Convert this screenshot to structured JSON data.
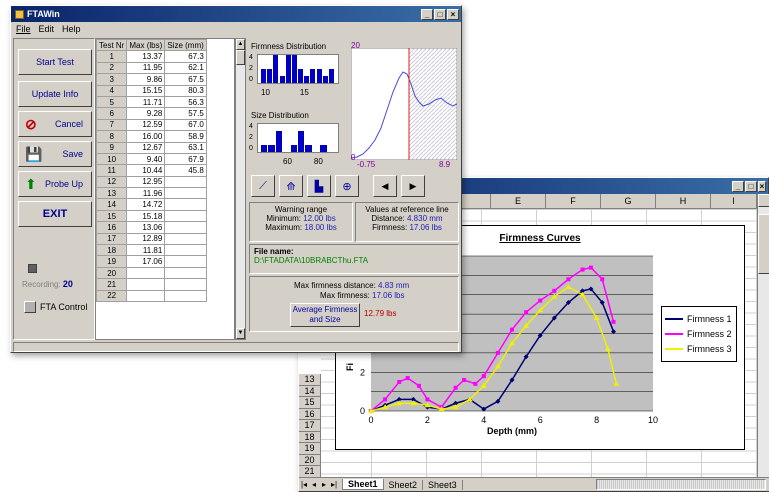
{
  "ftawin": {
    "title": "FTAWin",
    "menu": [
      "File",
      "Edit",
      "Help"
    ],
    "buttons": {
      "start_test": "Start Test",
      "update_info": "Update Info",
      "cancel": "Cancel",
      "save": "Save",
      "probe_up": "Probe Up",
      "exit": "EXIT"
    },
    "recording_label": "Recording:",
    "recording_value": "20",
    "fta_control": "FTA Control",
    "table_headers": [
      "Test Nr",
      "Max (lbs)",
      "Size (mm)"
    ],
    "rows": [
      [
        "1",
        "13.37",
        "67.3"
      ],
      [
        "2",
        "11.95",
        "62.1"
      ],
      [
        "3",
        "9.86",
        "67.5"
      ],
      [
        "4",
        "15.15",
        "80.3"
      ],
      [
        "5",
        "11.71",
        "56.3"
      ],
      [
        "6",
        "9.28",
        "57.5"
      ],
      [
        "7",
        "12.59",
        "67.0"
      ],
      [
        "8",
        "16.00",
        "58.9"
      ],
      [
        "9",
        "12.67",
        "63.1"
      ],
      [
        "10",
        "9.40",
        "67.9"
      ],
      [
        "11",
        "10.44",
        "45.8"
      ],
      [
        "12",
        "12.95",
        ""
      ],
      [
        "13",
        "11.96",
        ""
      ],
      [
        "14",
        "14.72",
        ""
      ],
      [
        "15",
        "15.18",
        ""
      ],
      [
        "16",
        "13.06",
        ""
      ],
      [
        "17",
        "12.89",
        ""
      ],
      [
        "18",
        "11.81",
        ""
      ],
      [
        "19",
        "17.06",
        ""
      ],
      [
        "20",
        "",
        ""
      ],
      [
        "21",
        "",
        ""
      ],
      [
        "22",
        "",
        ""
      ]
    ],
    "firmness_dist": {
      "title": "Firmness Distribution",
      "y_ticks": [
        "4",
        "2",
        "0"
      ],
      "x_ticks": [
        "10",
        "15"
      ],
      "bars": [
        2,
        2,
        4,
        1,
        4,
        4,
        2,
        1,
        2,
        2,
        1,
        2
      ]
    },
    "size_dist": {
      "title": "Size Distribution",
      "y_ticks": [
        "4",
        "2",
        "0"
      ],
      "x_ticks": [
        "60",
        "80"
      ],
      "bars": [
        1,
        1,
        3,
        0,
        1,
        3,
        1,
        0,
        1,
        0
      ]
    },
    "curve": {
      "top_label": "20",
      "bottom_label": "0",
      "x_left": "-0.75",
      "x_right": "8.9"
    },
    "warning": {
      "title": "Warning range",
      "min_label": "Minimum:",
      "min_value": "12.00 lbs",
      "max_label": "Maximum:",
      "max_value": "18.00 lbs"
    },
    "reference": {
      "title": "Values at reference line",
      "dist_label": "Distance:",
      "dist_value": "4.830 mm",
      "firm_label": "Firmness:",
      "firm_value": "17.06 lbs"
    },
    "file": {
      "label": "File name:",
      "value": "D:\\FTADATA\\10BRABCThu.FTA"
    },
    "max_dist_label": "Max firmness distance:",
    "max_dist_value": "4.83 mm",
    "max_firm_label": "Max firmness:",
    "max_firm_value": "17.06 lbs",
    "avg_button": "Average Firmness and Size",
    "avg_value": "12.79 lbs"
  },
  "excel": {
    "columns": [
      "E",
      "F",
      "G",
      "H",
      "I"
    ],
    "row_numbers": [
      "13",
      "14",
      "15",
      "16",
      "17",
      "18",
      "19",
      "20",
      "21"
    ],
    "tabs": [
      "Sheet1",
      "Sheet2",
      "Sheet3"
    ]
  },
  "chart_data": {
    "type": "line",
    "title": "Firmness Curves",
    "xlabel": "Depth (mm)",
    "ylabel": "Fi",
    "xlim": [
      0,
      10
    ],
    "x_ticks": [
      "0",
      "2",
      "4",
      "6",
      "8",
      "10"
    ],
    "y_ticks": [
      "0",
      "2"
    ],
    "legend": "right",
    "series": [
      {
        "name": "Firmness 1",
        "color": "#00006e",
        "x": [
          0,
          0.5,
          1,
          1.5,
          2,
          2.5,
          3,
          3.5,
          4,
          4.5,
          5,
          5.5,
          6,
          6.5,
          7,
          7.5,
          7.8,
          8.2,
          8.6
        ],
        "y": [
          0,
          0.3,
          0.6,
          0.6,
          0.2,
          0.1,
          0.4,
          0.6,
          0.1,
          0.5,
          1.6,
          2.8,
          3.9,
          4.8,
          5.6,
          6.2,
          6.3,
          5.6,
          4.1
        ]
      },
      {
        "name": "Firmness 2",
        "color": "#ff00ff",
        "x": [
          0,
          0.5,
          1,
          1.3,
          1.7,
          2,
          2.5,
          3,
          3.3,
          3.7,
          4,
          4.5,
          5,
          5.5,
          6,
          6.5,
          7,
          7.5,
          7.8,
          8.2,
          8.6
        ],
        "y": [
          0,
          0.6,
          1.5,
          1.7,
          1.3,
          0.6,
          0.2,
          1.2,
          1.6,
          1.4,
          1.8,
          3.0,
          4.2,
          5.1,
          5.7,
          6.2,
          6.8,
          7.3,
          7.4,
          6.8,
          4.6
        ]
      },
      {
        "name": "Firmness 3",
        "color": "#f0f000",
        "x": [
          0,
          0.5,
          1,
          1.5,
          2,
          2.5,
          3,
          3.5,
          4,
          4.5,
          5,
          5.5,
          6,
          6.5,
          7,
          7.5,
          8,
          8.4,
          8.7
        ],
        "y": [
          0,
          0.2,
          0.4,
          0.4,
          0.3,
          0.1,
          0.2,
          0.6,
          1.3,
          2.3,
          3.5,
          4.4,
          5.2,
          5.9,
          6.4,
          6.0,
          4.8,
          3.2,
          1.4
        ]
      }
    ]
  }
}
